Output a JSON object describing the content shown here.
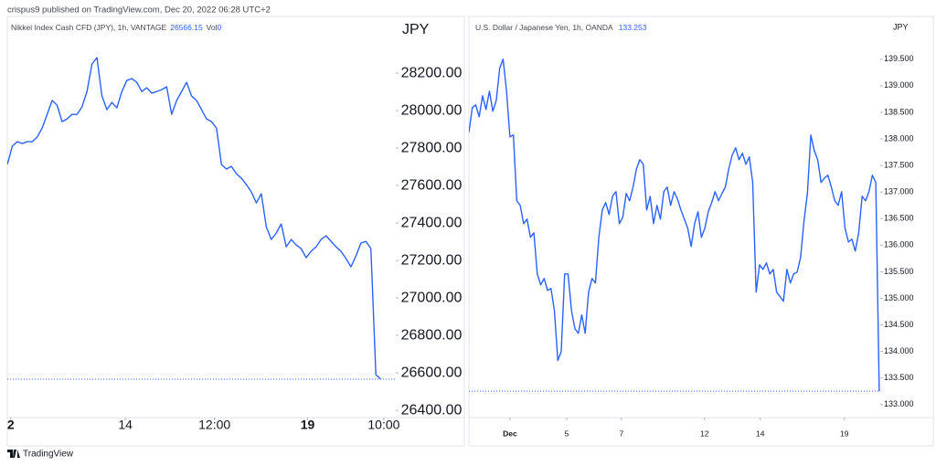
{
  "header": "crispus9 published on TradingView.com, Dec 20, 2022 06:28 UTC+2",
  "footer": "TradingView",
  "chart_data": [
    {
      "type": "line",
      "title": "Nikkei Index Cash CFD (JPY), 1h, VANTAGE",
      "last_value": 26566.15,
      "volume_label": "Vol",
      "volume": 0,
      "axis_unit": "JPY",
      "color": "#2962ff",
      "values": [
        27712,
        27810,
        27834,
        27824,
        27834,
        27834,
        27859,
        27907,
        27980,
        28054,
        28029,
        27941,
        27956,
        27980,
        27980,
        28020,
        28102,
        28249,
        28283,
        28078,
        28005,
        28044,
        28015,
        28102,
        28161,
        28171,
        28151,
        28102,
        28122,
        28093,
        28102,
        28112,
        28127,
        27980,
        28054,
        28102,
        28151,
        28078,
        28054,
        28005,
        27956,
        27941,
        27907,
        27712,
        27688,
        27702,
        27663,
        27639,
        27605,
        27566,
        27507,
        27556,
        27380,
        27312,
        27346,
        27395,
        27273,
        27312,
        27283,
        27263,
        27215,
        27249,
        27273,
        27312,
        27332,
        27302,
        27273,
        27249,
        27210,
        27166,
        27224,
        27293,
        27302,
        27263,
        26590,
        26566
      ],
      "xlim": [
        0,
        78
      ],
      "xticks": [
        {
          "value": 0.7,
          "label": "2"
        },
        {
          "value": 23.7,
          "label": "14"
        },
        {
          "value": 41.6,
          "label": "12:00"
        },
        {
          "value": 60.3,
          "label": "19"
        },
        {
          "value": 75.6,
          "label": "10:00"
        }
      ],
      "ylim": [
        26371,
        28493
      ],
      "yticks": [
        {
          "value": 26400,
          "label": "26400.00"
        },
        {
          "value": 26600,
          "label": "26600.00"
        },
        {
          "value": 26800,
          "label": "26800.00"
        },
        {
          "value": 27000,
          "label": "27000.00"
        },
        {
          "value": 27200,
          "label": "27200.00"
        },
        {
          "value": 27400,
          "label": "27400.00"
        },
        {
          "value": 27600,
          "label": "27600.00"
        },
        {
          "value": 27800,
          "label": "27800.00"
        },
        {
          "value": 28000,
          "label": "28000.00"
        },
        {
          "value": 28200,
          "label": "28200.00"
        }
      ]
    },
    {
      "type": "line",
      "title": "U.S. Dollar / Japanese Yen, 1h, OANDA",
      "last_value": 133.253,
      "axis_unit": "JPY",
      "color": "#2962ff",
      "values": [
        138.124,
        138.589,
        138.64,
        138.417,
        138.812,
        138.554,
        138.898,
        138.52,
        138.726,
        139.328,
        139.5,
        138.898,
        138.039,
        138.073,
        136.835,
        136.749,
        136.405,
        136.491,
        136.147,
        136.233,
        135.459,
        135.253,
        135.373,
        135.15,
        135.184,
        134.772,
        133.83,
        133.998,
        135.459,
        135.459,
        134.772,
        134.428,
        134.342,
        134.686,
        134.342,
        135.116,
        135.373,
        135.288,
        136.147,
        136.663,
        136.801,
        136.577,
        136.921,
        137.007,
        136.405,
        136.525,
        136.973,
        136.835,
        137.093,
        137.437,
        137.609,
        137.523,
        136.663,
        136.921,
        136.405,
        136.749,
        136.491,
        137.007,
        137.093,
        136.749,
        137.007,
        136.869,
        136.663,
        136.491,
        136.319,
        135.975,
        136.405,
        136.629,
        136.147,
        136.319,
        136.629,
        136.801,
        137.007,
        136.835,
        136.973,
        137.093,
        137.437,
        137.695,
        137.832,
        137.609,
        137.729,
        137.523,
        137.66,
        137.179,
        135.116,
        135.631,
        135.545,
        135.666,
        135.459,
        135.545,
        135.116,
        135.03,
        134.944,
        135.545,
        135.288,
        135.459,
        135.494,
        135.769,
        136.457,
        136.973,
        138.073,
        137.781,
        137.609,
        137.179,
        137.265,
        137.316,
        137.093,
        136.835,
        136.749,
        137.007,
        136.319,
        136.061,
        136.113,
        135.889,
        136.233,
        136.921,
        136.835,
        137.007,
        137.316,
        137.179,
        133.253
      ],
      "xlim": [
        0,
        120.3
      ],
      "xticks": [
        {
          "value": 12.0,
          "label": "Dec"
        },
        {
          "value": 28.6,
          "label": "5"
        },
        {
          "value": 44.6,
          "label": "7"
        },
        {
          "value": 68.9,
          "label": "12"
        },
        {
          "value": 85.2,
          "label": "14"
        },
        {
          "value": 109.8,
          "label": "19"
        }
      ],
      "ylim": [
        132.79,
        140.27
      ],
      "yticks": [
        {
          "value": 133.0,
          "label": "133.000"
        },
        {
          "value": 133.5,
          "label": "133.500"
        },
        {
          "value": 134.0,
          "label": "134.000"
        },
        {
          "value": 134.5,
          "label": "134.500"
        },
        {
          "value": 135.0,
          "label": "135.000"
        },
        {
          "value": 135.5,
          "label": "135.500"
        },
        {
          "value": 136.0,
          "label": "136.000"
        },
        {
          "value": 136.5,
          "label": "136.500"
        },
        {
          "value": 137.0,
          "label": "137.000"
        },
        {
          "value": 137.5,
          "label": "137.500"
        },
        {
          "value": 138.0,
          "label": "138.000"
        },
        {
          "value": 138.5,
          "label": "138.500"
        },
        {
          "value": 139.0,
          "label": "139.000"
        },
        {
          "value": 139.5,
          "label": "139.500"
        }
      ]
    }
  ]
}
